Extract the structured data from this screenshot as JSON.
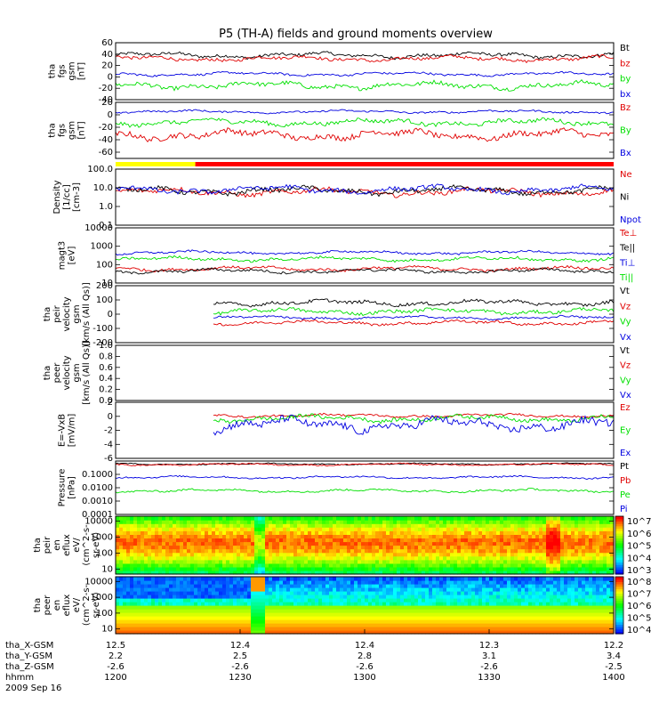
{
  "title": "P5 (TH-A) fields and ground moments overview",
  "colors": {
    "black": "#000000",
    "red": "#e00000",
    "green": "#00e000",
    "blue": "#0000e0",
    "yellow": "#ffff00",
    "mode_red": "#ff0000"
  },
  "chart_data": [
    {
      "type": "line",
      "ylabel": [
        "tha",
        "fgs",
        "gsm",
        "[nT]"
      ],
      "ylim": [
        -40,
        60
      ],
      "yticks": [
        "60",
        "40",
        "20",
        "0",
        "-20",
        "-40"
      ],
      "ytick_values": [
        60,
        40,
        20,
        0,
        -20,
        -40
      ],
      "series": [
        {
          "name": "Bt",
          "color": "#000000",
          "base": 38,
          "amp": 6
        },
        {
          "name": "bz",
          "color": "#e00000",
          "base": 32,
          "amp": 6
        },
        {
          "name": "by",
          "color": "#00e000",
          "base": -15,
          "amp": 8
        },
        {
          "name": "bx",
          "color": "#0000e0",
          "base": 5,
          "amp": 4
        }
      ]
    },
    {
      "type": "line",
      "ylabel": [
        "tha",
        "fgs",
        "gsm",
        "[nT]"
      ],
      "ylim": [
        -70,
        20
      ],
      "yticks": [
        "20",
        "0",
        "-20",
        "-40",
        "-60"
      ],
      "ytick_values": [
        20,
        0,
        -20,
        -40,
        -60
      ],
      "series": [
        {
          "name": "Bz",
          "color": "#e00000",
          "base": -32,
          "amp": 10
        },
        {
          "name": "By",
          "color": "#00e000",
          "base": -12,
          "amp": 7
        },
        {
          "name": "Bx",
          "color": "#0000e0",
          "base": 5,
          "amp": 3
        }
      ]
    },
    {
      "type": "line",
      "ylabel": [
        "Density",
        "[1/cc]",
        "[cm-3]"
      ],
      "ylim": [
        0.1,
        100
      ],
      "log": true,
      "yticks": [
        "100.0",
        "10.0",
        "1.0",
        "0.1"
      ],
      "ytick_values": [
        100,
        10,
        1,
        0.1
      ],
      "series": [
        {
          "name": "Ne",
          "color": "#e00000",
          "base": 6,
          "amp": 0.25
        },
        {
          "name": "Ni",
          "color": "#000000",
          "base": 7,
          "amp": 0.25
        },
        {
          "name": "Npot",
          "color": "#0000e0",
          "base": 8,
          "amp": 0.25
        }
      ]
    },
    {
      "type": "line",
      "ylabel": [
        "magt3",
        "[eV]"
      ],
      "ylim": [
        10,
        10000
      ],
      "log": true,
      "yticks": [
        "10000",
        "1000",
        "100",
        "10"
      ],
      "ytick_values": [
        10000,
        1000,
        100,
        10
      ],
      "series": [
        {
          "name": "Te⊥",
          "color": "#e00000",
          "base": 60,
          "amp": 0.15
        },
        {
          "name": "Te||",
          "color": "#000000",
          "base": 45,
          "amp": 0.15
        },
        {
          "name": "Ti⊥",
          "color": "#0000e0",
          "base": 450,
          "amp": 0.12
        },
        {
          "name": "Ti||",
          "color": "#00e000",
          "base": 200,
          "amp": 0.15
        }
      ]
    },
    {
      "type": "line",
      "ylabel": [
        "tha",
        "peir",
        "velocity",
        "gsm",
        "[km/s (All Qs)]"
      ],
      "ylim": [
        -200,
        200
      ],
      "yticks": [
        "200",
        "100",
        "0",
        "-100",
        "-200"
      ],
      "ytick_values": [
        200,
        100,
        0,
        -100,
        -200
      ],
      "series": [
        {
          "name": "Vt",
          "color": "#000000",
          "base": 80,
          "amp": 25
        },
        {
          "name": "Vz",
          "color": "#e00000",
          "base": -60,
          "amp": 20
        },
        {
          "name": "Vy",
          "color": "#00e000",
          "base": 20,
          "amp": 25
        },
        {
          "name": "Vx",
          "color": "#0000e0",
          "base": -25,
          "amp": 15
        }
      ]
    },
    {
      "type": "line",
      "ylabel": [
        "tha",
        "peer",
        "velocity",
        "gsm",
        "[km/s (All Qs)]"
      ],
      "ylim": [
        0,
        1
      ],
      "yticks": [
        "1.0",
        "0.8",
        "0.6",
        "0.4",
        "0.2",
        "0.0"
      ],
      "ytick_values": [
        1,
        0.8,
        0.6,
        0.4,
        0.2,
        0
      ],
      "series": [
        {
          "name": "Vt",
          "color": "#000000",
          "empty": true
        },
        {
          "name": "Vz",
          "color": "#e00000",
          "empty": true
        },
        {
          "name": "Vy",
          "color": "#00e000",
          "empty": true
        },
        {
          "name": "Vx",
          "color": "#0000e0",
          "empty": true
        }
      ]
    },
    {
      "type": "line",
      "ylabel": [
        "E=-VxB",
        "[mV/m]"
      ],
      "ylim": [
        -6,
        2
      ],
      "yticks": [
        "2",
        "0",
        "-2",
        "-4",
        "-6"
      ],
      "ytick_values": [
        2,
        0,
        -2,
        -4,
        -6
      ],
      "series": [
        {
          "name": "Ez",
          "color": "#e00000",
          "base": 0.1,
          "amp": 0.3
        },
        {
          "name": "Ey",
          "color": "#00e000",
          "base": -0.3,
          "amp": 0.6
        },
        {
          "name": "Ex",
          "color": "#0000e0",
          "base": -1.2,
          "amp": 1.2
        }
      ]
    },
    {
      "type": "line",
      "ylabel": [
        "Pressure",
        "[nPa]"
      ],
      "ylim": [
        0.0001,
        1
      ],
      "log": true,
      "yticks": [
        "0.1000",
        "0.0100",
        "0.0010",
        "0.0001"
      ],
      "ytick_values": [
        0.1,
        0.01,
        0.001,
        0.0001
      ],
      "series": [
        {
          "name": "Pt",
          "color": "#000000",
          "base": 0.6,
          "amp": 0.08
        },
        {
          "name": "Pb",
          "color": "#e00000",
          "base": 0.55,
          "amp": 0.1
        },
        {
          "name": "Pe",
          "color": "#00e000",
          "base": 0.006,
          "amp": 0.15
        },
        {
          "name": "Pi",
          "color": "#0000e0",
          "base": 0.06,
          "amp": 0.12
        }
      ]
    },
    {
      "type": "heatmap",
      "ylabel": [
        "tha",
        "peir",
        "en",
        "eflux",
        "eV/",
        "(cm^2-s-",
        "sr-eV)"
      ],
      "ylim": [
        5,
        20000
      ],
      "log": true,
      "yticks": [
        "10000",
        "1000",
        "100",
        "10"
      ],
      "ytick_values": [
        10000,
        1000,
        100,
        10
      ],
      "colorbar_ticks": [
        "10^7",
        "10^6",
        "10^5",
        "10^4",
        "10^3"
      ]
    },
    {
      "type": "heatmap",
      "ylabel": [
        "tha",
        "peer",
        "en",
        "eflux",
        "eV/",
        "(cm^2-s-",
        "sr-eV)"
      ],
      "ylim": [
        5,
        20000
      ],
      "log": true,
      "yticks": [
        "10000",
        "1000",
        "100",
        "10"
      ],
      "ytick_values": [
        10000,
        1000,
        100,
        10
      ],
      "colorbar_ticks": [
        "10^8",
        "10^7",
        "10^6",
        "10^5",
        "10^4"
      ]
    }
  ],
  "x_axis": {
    "tick_values": [
      1200,
      1230,
      1300,
      1330,
      1400
    ],
    "rows": [
      {
        "label": "tha_X-GSM",
        "values": [
          "12.5",
          "12.4",
          "12.4",
          "12.3",
          "12.2"
        ]
      },
      {
        "label": "tha_Y-GSM",
        "values": [
          "2.2",
          "2.5",
          "2.8",
          "3.1",
          "3.4"
        ]
      },
      {
        "label": "tha_Z-GSM",
        "values": [
          "-2.6",
          "-2.6",
          "-2.6",
          "-2.6",
          "-2.5"
        ]
      },
      {
        "label": "hhmm",
        "values": [
          "1200",
          "1230",
          "1300",
          "1330",
          "1400"
        ]
      }
    ],
    "date": "2009 Sep 16"
  }
}
